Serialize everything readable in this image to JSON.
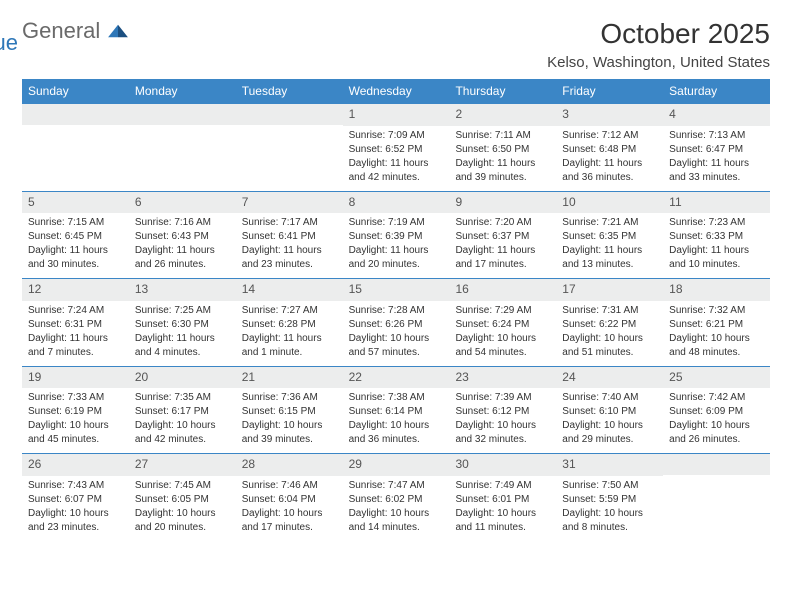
{
  "logo": {
    "word1": "General",
    "word2": "Blue"
  },
  "title": "October 2025",
  "location": "Kelso, Washington, United States",
  "colors": {
    "header_bg": "#3b86c6",
    "daynum_bg": "#eceded",
    "logo_gray": "#6a6a6a",
    "logo_blue": "#2e77b8",
    "rule": "#3b86c6"
  },
  "dow": [
    "Sunday",
    "Monday",
    "Tuesday",
    "Wednesday",
    "Thursday",
    "Friday",
    "Saturday"
  ],
  "weeks": [
    [
      null,
      null,
      null,
      {
        "n": "1",
        "sr": "Sunrise: 7:09 AM",
        "ss": "Sunset: 6:52 PM",
        "dl1": "Daylight: 11 hours",
        "dl2": "and 42 minutes."
      },
      {
        "n": "2",
        "sr": "Sunrise: 7:11 AM",
        "ss": "Sunset: 6:50 PM",
        "dl1": "Daylight: 11 hours",
        "dl2": "and 39 minutes."
      },
      {
        "n": "3",
        "sr": "Sunrise: 7:12 AM",
        "ss": "Sunset: 6:48 PM",
        "dl1": "Daylight: 11 hours",
        "dl2": "and 36 minutes."
      },
      {
        "n": "4",
        "sr": "Sunrise: 7:13 AM",
        "ss": "Sunset: 6:47 PM",
        "dl1": "Daylight: 11 hours",
        "dl2": "and 33 minutes."
      }
    ],
    [
      {
        "n": "5",
        "sr": "Sunrise: 7:15 AM",
        "ss": "Sunset: 6:45 PM",
        "dl1": "Daylight: 11 hours",
        "dl2": "and 30 minutes."
      },
      {
        "n": "6",
        "sr": "Sunrise: 7:16 AM",
        "ss": "Sunset: 6:43 PM",
        "dl1": "Daylight: 11 hours",
        "dl2": "and 26 minutes."
      },
      {
        "n": "7",
        "sr": "Sunrise: 7:17 AM",
        "ss": "Sunset: 6:41 PM",
        "dl1": "Daylight: 11 hours",
        "dl2": "and 23 minutes."
      },
      {
        "n": "8",
        "sr": "Sunrise: 7:19 AM",
        "ss": "Sunset: 6:39 PM",
        "dl1": "Daylight: 11 hours",
        "dl2": "and 20 minutes."
      },
      {
        "n": "9",
        "sr": "Sunrise: 7:20 AM",
        "ss": "Sunset: 6:37 PM",
        "dl1": "Daylight: 11 hours",
        "dl2": "and 17 minutes."
      },
      {
        "n": "10",
        "sr": "Sunrise: 7:21 AM",
        "ss": "Sunset: 6:35 PM",
        "dl1": "Daylight: 11 hours",
        "dl2": "and 13 minutes."
      },
      {
        "n": "11",
        "sr": "Sunrise: 7:23 AM",
        "ss": "Sunset: 6:33 PM",
        "dl1": "Daylight: 11 hours",
        "dl2": "and 10 minutes."
      }
    ],
    [
      {
        "n": "12",
        "sr": "Sunrise: 7:24 AM",
        "ss": "Sunset: 6:31 PM",
        "dl1": "Daylight: 11 hours",
        "dl2": "and 7 minutes."
      },
      {
        "n": "13",
        "sr": "Sunrise: 7:25 AM",
        "ss": "Sunset: 6:30 PM",
        "dl1": "Daylight: 11 hours",
        "dl2": "and 4 minutes."
      },
      {
        "n": "14",
        "sr": "Sunrise: 7:27 AM",
        "ss": "Sunset: 6:28 PM",
        "dl1": "Daylight: 11 hours",
        "dl2": "and 1 minute."
      },
      {
        "n": "15",
        "sr": "Sunrise: 7:28 AM",
        "ss": "Sunset: 6:26 PM",
        "dl1": "Daylight: 10 hours",
        "dl2": "and 57 minutes."
      },
      {
        "n": "16",
        "sr": "Sunrise: 7:29 AM",
        "ss": "Sunset: 6:24 PM",
        "dl1": "Daylight: 10 hours",
        "dl2": "and 54 minutes."
      },
      {
        "n": "17",
        "sr": "Sunrise: 7:31 AM",
        "ss": "Sunset: 6:22 PM",
        "dl1": "Daylight: 10 hours",
        "dl2": "and 51 minutes."
      },
      {
        "n": "18",
        "sr": "Sunrise: 7:32 AM",
        "ss": "Sunset: 6:21 PM",
        "dl1": "Daylight: 10 hours",
        "dl2": "and 48 minutes."
      }
    ],
    [
      {
        "n": "19",
        "sr": "Sunrise: 7:33 AM",
        "ss": "Sunset: 6:19 PM",
        "dl1": "Daylight: 10 hours",
        "dl2": "and 45 minutes."
      },
      {
        "n": "20",
        "sr": "Sunrise: 7:35 AM",
        "ss": "Sunset: 6:17 PM",
        "dl1": "Daylight: 10 hours",
        "dl2": "and 42 minutes."
      },
      {
        "n": "21",
        "sr": "Sunrise: 7:36 AM",
        "ss": "Sunset: 6:15 PM",
        "dl1": "Daylight: 10 hours",
        "dl2": "and 39 minutes."
      },
      {
        "n": "22",
        "sr": "Sunrise: 7:38 AM",
        "ss": "Sunset: 6:14 PM",
        "dl1": "Daylight: 10 hours",
        "dl2": "and 36 minutes."
      },
      {
        "n": "23",
        "sr": "Sunrise: 7:39 AM",
        "ss": "Sunset: 6:12 PM",
        "dl1": "Daylight: 10 hours",
        "dl2": "and 32 minutes."
      },
      {
        "n": "24",
        "sr": "Sunrise: 7:40 AM",
        "ss": "Sunset: 6:10 PM",
        "dl1": "Daylight: 10 hours",
        "dl2": "and 29 minutes."
      },
      {
        "n": "25",
        "sr": "Sunrise: 7:42 AM",
        "ss": "Sunset: 6:09 PM",
        "dl1": "Daylight: 10 hours",
        "dl2": "and 26 minutes."
      }
    ],
    [
      {
        "n": "26",
        "sr": "Sunrise: 7:43 AM",
        "ss": "Sunset: 6:07 PM",
        "dl1": "Daylight: 10 hours",
        "dl2": "and 23 minutes."
      },
      {
        "n": "27",
        "sr": "Sunrise: 7:45 AM",
        "ss": "Sunset: 6:05 PM",
        "dl1": "Daylight: 10 hours",
        "dl2": "and 20 minutes."
      },
      {
        "n": "28",
        "sr": "Sunrise: 7:46 AM",
        "ss": "Sunset: 6:04 PM",
        "dl1": "Daylight: 10 hours",
        "dl2": "and 17 minutes."
      },
      {
        "n": "29",
        "sr": "Sunrise: 7:47 AM",
        "ss": "Sunset: 6:02 PM",
        "dl1": "Daylight: 10 hours",
        "dl2": "and 14 minutes."
      },
      {
        "n": "30",
        "sr": "Sunrise: 7:49 AM",
        "ss": "Sunset: 6:01 PM",
        "dl1": "Daylight: 10 hours",
        "dl2": "and 11 minutes."
      },
      {
        "n": "31",
        "sr": "Sunrise: 7:50 AM",
        "ss": "Sunset: 5:59 PM",
        "dl1": "Daylight: 10 hours",
        "dl2": "and 8 minutes."
      },
      null
    ]
  ]
}
